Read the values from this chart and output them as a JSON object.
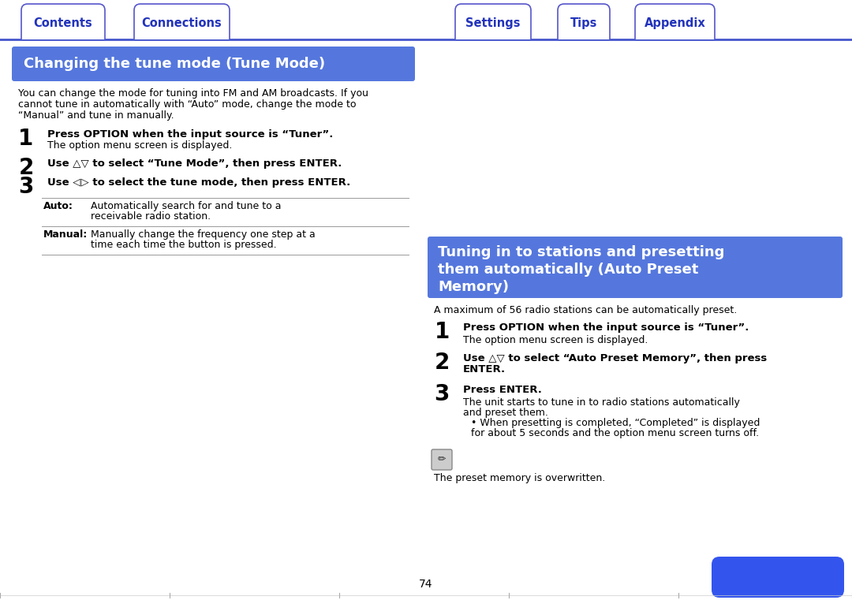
{
  "bg_color": "#ffffff",
  "tab_border_color": "#5555cc",
  "tab_text_color": "#2233bb",
  "section_bg_left": "#5577dd",
  "section_bg_right": "#5577dd",
  "section_text_color": "#ffffff",
  "left_title": "Changing the tune mode (Tune Mode)",
  "right_title_line1": "Tuning in to stations and presetting",
  "right_title_line2": "them automatically (Auto Preset",
  "right_title_line3": "Memory)",
  "left_body": "You can change the mode for tuning into FM and AM broadcasts. If you\ncannot tune in automatically with “Auto” mode, change the mode to\n“Manual” and tune in manually.",
  "right_body": "A maximum of 56 radio stations can be automatically preset.",
  "left_steps": [
    {
      "num": "1",
      "bold": "Press OPTION when the input source is “Tuner”.",
      "normal": "The option menu screen is displayed."
    },
    {
      "num": "2",
      "bold": "Use △▽ to select “Tune Mode”, then press ENTER.",
      "normal": ""
    },
    {
      "num": "3",
      "bold": "Use ◁▷ to select the tune mode, then press ENTER.",
      "normal": ""
    }
  ],
  "left_table": [
    {
      "label": "Auto:",
      "text": "Automatically search for and tune to a receivable radio station."
    },
    {
      "label": "Manual:",
      "text": "Manually change the frequency one step at a time each time the button is pressed."
    }
  ],
  "right_steps": [
    {
      "num": "1",
      "bold": "Press OPTION when the input source is “Tuner”.",
      "normal": "The option menu screen is displayed."
    },
    {
      "num": "2",
      "bold": "Use △▽ to select “Auto Preset Memory”, then press ENTER.",
      "normal": ""
    },
    {
      "num": "3",
      "bold": "Press ENTER.",
      "normal": "The unit starts to tune in to radio stations automatically and preset them.\n• When presetting is completed, “Completed” is displayed for about 5 seconds and the option menu screen turns off."
    }
  ],
  "right_note": "The preset memory is overwritten.",
  "page_number": "74",
  "tab_line_color": "#4455cc",
  "divider_color": "#999999",
  "text_color": "#000000",
  "blue_btn_color": "#3355ee"
}
